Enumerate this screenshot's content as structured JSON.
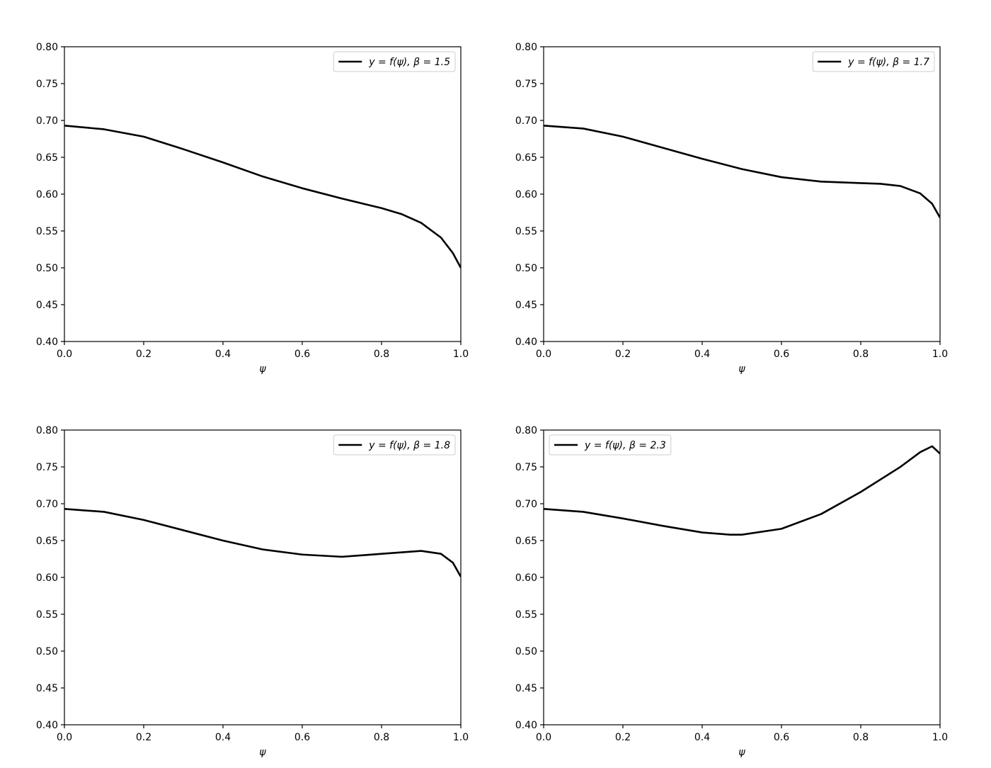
{
  "chart_data": [
    {
      "type": "line",
      "xlabel": "ψ",
      "x": [
        0,
        0.1,
        0.2,
        0.3,
        0.4,
        0.5,
        0.6,
        0.7,
        0.8,
        0.85,
        0.9,
        0.95,
        0.98,
        1.0
      ],
      "series": [
        {
          "name": "y = f(ψ), β = 1.5",
          "color": "#000000",
          "values": [
            0.693,
            0.688,
            0.678,
            0.661,
            0.643,
            0.624,
            0.608,
            0.594,
            0.581,
            0.573,
            0.561,
            0.541,
            0.52,
            0.5
          ]
        }
      ],
      "xlim": [
        0,
        1
      ],
      "ylim": [
        0.4,
        0.8
      ],
      "xticks": [
        {
          "value": 0,
          "label": "0.0"
        },
        0.2,
        0.4,
        0.6,
        0.8,
        {
          "value": 1,
          "label": "1.0"
        }
      ],
      "yticks": [
        {
          "value": 0.4,
          "label": "0.40"
        },
        0.45,
        {
          "value": 0.5,
          "label": "0.50"
        },
        0.55,
        {
          "value": 0.6,
          "label": "0.60"
        },
        0.65,
        {
          "value": 0.7,
          "label": "0.70"
        },
        0.75,
        {
          "value": 0.8,
          "label": "0.80"
        }
      ],
      "legend": "upper right"
    },
    {
      "type": "line",
      "xlabel": "ψ",
      "x": [
        0,
        0.1,
        0.2,
        0.3,
        0.4,
        0.5,
        0.6,
        0.7,
        0.8,
        0.85,
        0.9,
        0.95,
        0.98,
        1.0
      ],
      "series": [
        {
          "name": "y = f(ψ), β = 1.7",
          "color": "#000000",
          "values": [
            0.693,
            0.689,
            0.678,
            0.663,
            0.648,
            0.634,
            0.623,
            0.617,
            0.615,
            0.614,
            0.611,
            0.601,
            0.587,
            0.568
          ]
        }
      ],
      "xlim": [
        0,
        1
      ],
      "ylim": [
        0.4,
        0.8
      ],
      "xticks": [
        {
          "value": 0,
          "label": "0.0"
        },
        0.2,
        0.4,
        0.6,
        0.8,
        {
          "value": 1,
          "label": "1.0"
        }
      ],
      "yticks": [
        {
          "value": 0.4,
          "label": "0.40"
        },
        0.45,
        {
          "value": 0.5,
          "label": "0.50"
        },
        0.55,
        {
          "value": 0.6,
          "label": "0.60"
        },
        0.65,
        {
          "value": 0.7,
          "label": "0.70"
        },
        0.75,
        {
          "value": 0.8,
          "label": "0.80"
        }
      ],
      "legend": "upper right"
    },
    {
      "type": "line",
      "xlabel": "ψ",
      "x": [
        0,
        0.1,
        0.2,
        0.3,
        0.4,
        0.5,
        0.6,
        0.7,
        0.8,
        0.9,
        0.95,
        0.98,
        1.0
      ],
      "series": [
        {
          "name": "y = f(ψ), β = 1.8",
          "color": "#000000",
          "values": [
            0.693,
            0.689,
            0.678,
            0.664,
            0.65,
            0.638,
            0.631,
            0.628,
            0.632,
            0.636,
            0.632,
            0.62,
            0.601
          ]
        }
      ],
      "xlim": [
        0,
        1
      ],
      "ylim": [
        0.4,
        0.8
      ],
      "xticks": [
        {
          "value": 0,
          "label": "0.0"
        },
        0.2,
        0.4,
        0.6,
        0.8,
        {
          "value": 1,
          "label": "1.0"
        }
      ],
      "yticks": [
        {
          "value": 0.4,
          "label": "0.40"
        },
        0.45,
        {
          "value": 0.5,
          "label": "0.50"
        },
        0.55,
        {
          "value": 0.6,
          "label": "0.60"
        },
        0.65,
        {
          "value": 0.7,
          "label": "0.70"
        },
        0.75,
        {
          "value": 0.8,
          "label": "0.80"
        }
      ],
      "legend": "upper right"
    },
    {
      "type": "line",
      "xlabel": "ψ",
      "x": [
        0,
        0.1,
        0.2,
        0.3,
        0.4,
        0.47,
        0.5,
        0.6,
        0.7,
        0.8,
        0.9,
        0.95,
        0.98,
        1.0
      ],
      "series": [
        {
          "name": "y = f(ψ), β = 2.3",
          "color": "#000000",
          "values": [
            0.693,
            0.689,
            0.68,
            0.67,
            0.661,
            0.658,
            0.658,
            0.666,
            0.686,
            0.716,
            0.75,
            0.77,
            0.778,
            0.768
          ]
        }
      ],
      "xlim": [
        0,
        1
      ],
      "ylim": [
        0.4,
        0.8
      ],
      "xticks": [
        {
          "value": 0,
          "label": "0.0"
        },
        0.2,
        0.4,
        0.6,
        0.8,
        {
          "value": 1,
          "label": "1.0"
        }
      ],
      "yticks": [
        {
          "value": 0.4,
          "label": "0.40"
        },
        0.45,
        {
          "value": 0.5,
          "label": "0.50"
        },
        0.55,
        {
          "value": 0.6,
          "label": "0.60"
        },
        0.65,
        {
          "value": 0.7,
          "label": "0.70"
        },
        0.75,
        {
          "value": 0.8,
          "label": "0.80"
        }
      ],
      "legend": "upper left"
    }
  ]
}
